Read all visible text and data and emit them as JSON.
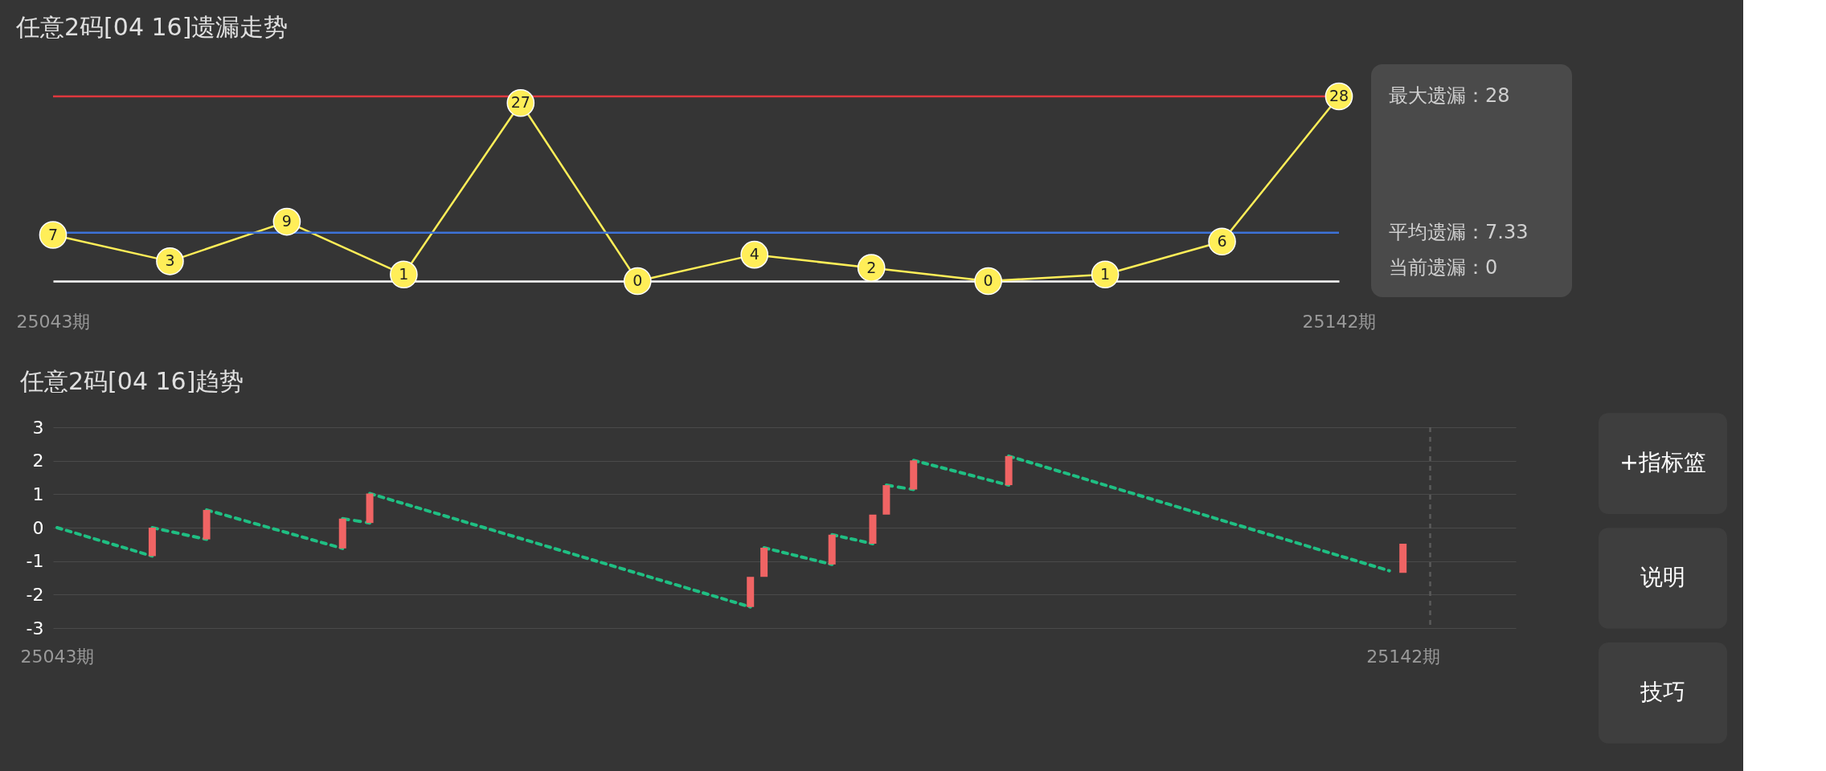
{
  "chart_data": [
    {
      "type": "line",
      "title": "任意2码[04 16]遗漏走势",
      "categories": [
        "25043期",
        null,
        null,
        null,
        null,
        null,
        null,
        null,
        null,
        null,
        null,
        "25142期"
      ],
      "marker": "circle",
      "data_labels": true,
      "grid": false,
      "series": [
        {
          "color": "#ffee58",
          "values": [
            7,
            3,
            9,
            1,
            27,
            0,
            4,
            2,
            0,
            1,
            6,
            28
          ]
        }
      ],
      "ref_lines": [
        {
          "axis": "y",
          "value": 28,
          "color": "#e0383e",
          "label": "最大遗漏：28"
        },
        {
          "axis": "y",
          "value": 7.33,
          "color": "#3d72d8",
          "label": "平均遗漏：7.33"
        }
      ],
      "annotations": [
        "当前遗漏：0"
      ]
    },
    {
      "type": "line",
      "title": "任意2码[04 16]趋势",
      "xlim": [
        25043,
        25150
      ],
      "xticks": [
        {
          "value": 25043,
          "label": "25043期"
        },
        {
          "value": 25142,
          "label": "25142期"
        }
      ],
      "ylim": [
        -3,
        3
      ],
      "yticks": [
        -3,
        -2,
        -1,
        0,
        1,
        2,
        3
      ],
      "grid": "y",
      "series": [
        {
          "type": "line",
          "color": "#1fbf83",
          "line_style": "dashed",
          "x": [
            25043,
            25050
          ],
          "values": [
            0,
            -0.85
          ]
        },
        {
          "type": "line",
          "color": "#1fbf83",
          "line_style": "dashed",
          "x": [
            25050,
            25054
          ],
          "values": [
            0,
            -0.35
          ]
        },
        {
          "type": "line",
          "color": "#1fbf83",
          "line_style": "dashed",
          "x": [
            25054,
            25064
          ],
          "values": [
            0.53,
            -0.62
          ]
        },
        {
          "type": "line",
          "color": "#1fbf83",
          "line_style": "dashed",
          "x": [
            25064,
            25066
          ],
          "values": [
            0.27,
            0.14
          ]
        },
        {
          "type": "line",
          "color": "#1fbf83",
          "line_style": "dashed",
          "x": [
            25066,
            25094
          ],
          "values": [
            1.02,
            -2.37
          ]
        },
        {
          "type": "line",
          "color": "#1fbf83",
          "line_style": "dashed",
          "x": [
            25095,
            25100
          ],
          "values": [
            -0.6,
            -1.1
          ]
        },
        {
          "type": "line",
          "color": "#1fbf83",
          "line_style": "dashed",
          "x": [
            25100,
            25103
          ],
          "values": [
            -0.21,
            -0.48
          ]
        },
        {
          "type": "line",
          "color": "#1fbf83",
          "line_style": "dashed",
          "x": [
            25104,
            25106
          ],
          "values": [
            1.27,
            1.14
          ]
        },
        {
          "type": "line",
          "color": "#1fbf83",
          "line_style": "dashed",
          "x": [
            25106,
            25113
          ],
          "values": [
            2.01,
            1.27
          ]
        },
        {
          "type": "line",
          "color": "#1fbf83",
          "line_style": "dashed",
          "x": [
            25113,
            25141
          ],
          "values": [
            2.14,
            -1.29
          ]
        },
        {
          "type": "bar",
          "color": "#f06464",
          "x": [
            25050,
            25054,
            25064,
            25066,
            25094,
            25095,
            25100,
            25103,
            25104,
            25106,
            25113,
            25142
          ],
          "base": [
            -0.85,
            -0.35,
            -0.62,
            0.14,
            -2.37,
            -1.47,
            -1.1,
            -0.48,
            0.39,
            1.14,
            1.27,
            -1.35
          ],
          "values": [
            0.85,
            0.88,
            0.89,
            0.88,
            0.9,
            0.87,
            0.89,
            0.87,
            0.88,
            0.87,
            0.87,
            0.87
          ]
        }
      ],
      "ref_lines": [
        {
          "axis": "x",
          "value": 25144,
          "color": "#5a5a5a",
          "line_style": "dashed"
        }
      ]
    },
    {
      "type": "other",
      "annotations": [
        "+指标篮",
        "说明",
        "技巧"
      ]
    }
  ]
}
